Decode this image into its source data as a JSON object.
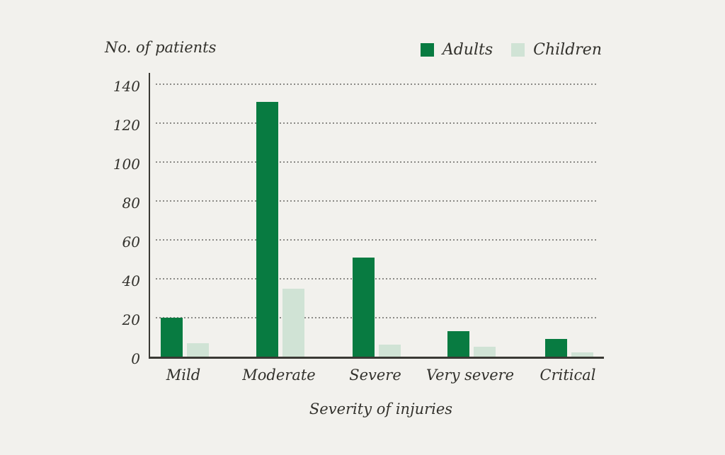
{
  "colors": {
    "background": "#f2f1ed",
    "text": "#32312c",
    "axis": "#3a3934",
    "gridline": "#8b8a86",
    "adults": "#087b41",
    "children": "#d0e3d5"
  },
  "chart_data": {
    "type": "bar",
    "title": "No. of patients",
    "xlabel": "Severity of injuries",
    "ylabel": "No. of patients",
    "categories": [
      "Mild",
      "Moderate",
      "Severe",
      "Very severe",
      "Critical"
    ],
    "series": [
      {
        "name": "Adults",
        "color": "#087b41",
        "values": [
          20,
          131,
          51,
          13,
          9
        ]
      },
      {
        "name": "Children",
        "color": "#d0e3d5",
        "values": [
          7,
          35,
          6,
          5,
          2
        ]
      }
    ],
    "ylim": [
      0,
      140
    ],
    "yticks": [
      0,
      20,
      40,
      60,
      80,
      100,
      120,
      140
    ],
    "grid": "horizontal-dotted",
    "legend_position": "top-right",
    "legend": [
      "Adults",
      "Children"
    ]
  }
}
